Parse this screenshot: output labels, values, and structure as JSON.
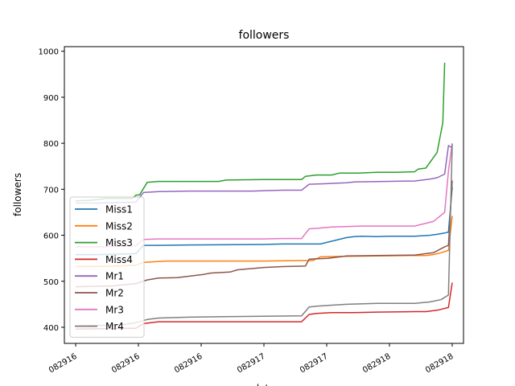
{
  "chart_data": {
    "type": "line",
    "title": "followers",
    "xlabel": "date",
    "ylabel": "followers",
    "x_tick_labels": [
      "082916",
      "082916",
      "082916",
      "082917",
      "082917",
      "082918",
      "082918"
    ],
    "yticks": [
      400,
      500,
      600,
      700,
      800,
      900,
      1000
    ],
    "ylim": [
      365,
      1010
    ],
    "xlim": [
      -0.03,
      1.03
    ],
    "grid": false,
    "legend_position": "left",
    "series": [
      {
        "name": "Miss1",
        "color": "#1f77b4",
        "x": [
          0,
          0.06,
          0.16,
          0.18,
          0.22,
          0.3,
          0.5,
          0.55,
          0.6,
          0.65,
          0.72,
          0.74,
          0.76,
          0.8,
          0.83,
          0.86,
          0.9,
          0.94,
          0.96,
          0.98,
          0.99,
          1.0
        ],
        "y": [
          558,
          558,
          560,
          578,
          578,
          579,
          580,
          581,
          581,
          581,
          595,
          597,
          598,
          597,
          598,
          598,
          598,
          600,
          602,
          605,
          607,
          705
        ]
      },
      {
        "name": "Miss2",
        "color": "#ff7f0e",
        "x": [
          0,
          0.1,
          0.16,
          0.18,
          0.24,
          0.4,
          0.5,
          0.6,
          0.63,
          0.65,
          0.7,
          0.8,
          0.9,
          0.93,
          0.95,
          0.97,
          0.99,
          1.0
        ],
        "y": [
          532,
          533,
          535,
          541,
          544,
          544,
          544,
          545,
          545,
          553,
          554,
          555,
          556,
          556,
          558,
          562,
          567,
          642
        ]
      },
      {
        "name": "Miss3",
        "color": "#2ca02c",
        "x": [
          0,
          0.04,
          0.08,
          0.15,
          0.16,
          0.17,
          0.19,
          0.22,
          0.3,
          0.38,
          0.4,
          0.5,
          0.6,
          0.61,
          0.64,
          0.68,
          0.7,
          0.75,
          0.8,
          0.85,
          0.9,
          0.91,
          0.93,
          0.96,
          0.975,
          0.98
        ],
        "y": [
          675,
          676,
          680,
          680,
          687,
          688,
          715,
          717,
          717,
          717,
          720,
          721,
          721,
          728,
          731,
          731,
          735,
          735,
          737,
          737,
          738,
          744,
          746,
          780,
          845,
          975
        ]
      },
      {
        "name": "Mr1",
        "color": "#9467bd",
        "x": [
          0,
          0.06,
          0.16,
          0.18,
          0.22,
          0.3,
          0.4,
          0.47,
          0.5,
          0.55,
          0.6,
          0.62,
          0.66,
          0.72,
          0.74,
          0.82,
          0.9,
          0.94,
          0.96,
          0.98,
          0.99,
          1.0
        ],
        "y": [
          670,
          670,
          672,
          693,
          695,
          696,
          696,
          696,
          697,
          698,
          698,
          711,
          712,
          714,
          716,
          717,
          718,
          722,
          725,
          733,
          795,
          790
        ]
      },
      {
        "name": "Mr2",
        "color": "#8c564b",
        "x": [
          0,
          0.1,
          0.16,
          0.19,
          0.22,
          0.27,
          0.34,
          0.36,
          0.41,
          0.43,
          0.5,
          0.55,
          0.61,
          0.62,
          0.67,
          0.72,
          0.8,
          0.9,
          0.93,
          0.95,
          0.98,
          0.99,
          1.0
        ],
        "y": [
          488,
          490,
          495,
          503,
          507,
          508,
          515,
          518,
          520,
          525,
          530,
          532,
          533,
          548,
          550,
          555,
          556,
          557,
          560,
          562,
          575,
          578,
          719
        ]
      },
      {
        "name": "Mr3",
        "color": "#e377c2",
        "x": [
          0,
          0.06,
          0.16,
          0.18,
          0.22,
          0.3,
          0.5,
          0.55,
          0.6,
          0.62,
          0.64,
          0.68,
          0.76,
          0.82,
          0.9,
          0.95,
          0.98,
          0.99,
          1.0
        ],
        "y": [
          575,
          575,
          577,
          591,
          592,
          592,
          592,
          593,
          593,
          614,
          615,
          618,
          620,
          620,
          620,
          630,
          650,
          740,
          800
        ]
      },
      {
        "name": "Mr4",
        "color": "#7f7f7f",
        "x": [
          0,
          0.12,
          0.16,
          0.19,
          0.22,
          0.3,
          0.4,
          0.5,
          0.6,
          0.62,
          0.64,
          0.68,
          0.72,
          0.8,
          0.9,
          0.94,
          0.97,
          0.99,
          1.0
        ],
        "y": [
          403,
          405,
          410,
          417,
          420,
          422,
          423,
          424,
          425,
          444,
          446,
          448,
          450,
          452,
          452,
          455,
          460,
          470,
          798
        ]
      },
      {
        "name": "Miss4",
        "color": "#d62728",
        "x": [
          0,
          0.16,
          0.18,
          0.22,
          0.28,
          0.38,
          0.5,
          0.6,
          0.62,
          0.64,
          0.68,
          0.74,
          0.8,
          0.9,
          0.93,
          0.96,
          0.99,
          1.0
        ],
        "y": [
          396,
          398,
          408,
          412,
          412,
          412,
          412,
          412,
          428,
          430,
          432,
          432,
          433,
          434,
          434,
          437,
          443,
          497
        ]
      }
    ]
  },
  "legend_order": [
    "Miss1",
    "Miss2",
    "Miss3",
    "Miss4",
    "Mr1",
    "Mr2",
    "Mr3",
    "Mr4"
  ],
  "legend_colors": {
    "Miss1": "#1f77b4",
    "Miss2": "#ff7f0e",
    "Miss3": "#2ca02c",
    "Miss4": "#d62728",
    "Mr1": "#9467bd",
    "Mr2": "#8c564b",
    "Mr3": "#e377c2",
    "Mr4": "#7f7f7f"
  }
}
